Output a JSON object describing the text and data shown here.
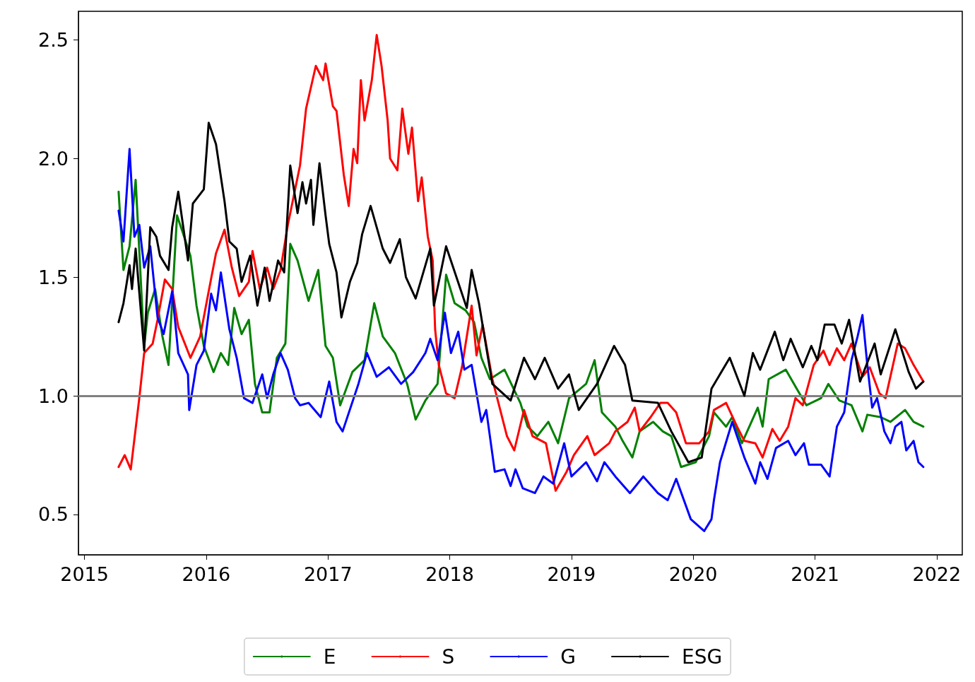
{
  "chart_data": {
    "type": "line",
    "xlim": [
      2014.95,
      2022.21
    ],
    "xticks": [
      2015,
      2016,
      2017,
      2018,
      2019,
      2020,
      2021,
      2022
    ],
    "ylim": [
      0.33,
      2.62
    ],
    "yticks": [
      0.5,
      {
        "value": 1,
        "label": "1.0"
      },
      1.5,
      {
        "value": 2,
        "label": "2.0"
      },
      2.5
    ],
    "grid": false,
    "legend": "bottom",
    "marker": "none",
    "line_style": "solid",
    "ref_lines": [
      {
        "axis": "y",
        "value": 1.0,
        "color": "#808080"
      }
    ],
    "series": [
      {
        "name": "E",
        "color": "#008000",
        "x": [
          2015.28,
          2015.32,
          2015.37,
          2015.42,
          2015.49,
          2015.52,
          2015.58,
          2015.64,
          2015.69,
          2015.76,
          2015.87,
          2015.92,
          2015.98,
          2016.06,
          2016.12,
          2016.18,
          2016.23,
          2016.29,
          2016.35,
          2016.4,
          2016.46,
          2016.52,
          2016.58,
          2016.65,
          2016.69,
          2016.75,
          2016.84,
          2016.92,
          2016.98,
          2017.04,
          2017.1,
          2017.2,
          2017.3,
          2017.38,
          2017.45,
          2017.55,
          2017.65,
          2017.72,
          2017.8,
          2017.9,
          2017.97,
          2018.04,
          2018.13,
          2018.2,
          2018.26,
          2018.33,
          2018.45,
          2018.58,
          2018.64,
          2018.72,
          2018.81,
          2018.89,
          2018.98,
          2019.12,
          2019.19,
          2019.25,
          2019.36,
          2019.42,
          2019.5,
          2019.56,
          2019.67,
          2019.75,
          2019.82,
          2019.9,
          2020.02,
          2020.13,
          2020.17,
          2020.27,
          2020.32,
          2020.4,
          2020.53,
          2020.57,
          2020.62,
          2020.76,
          2020.85,
          2020.93,
          2021.05,
          2021.11,
          2021.2,
          2021.3,
          2021.39,
          2021.43,
          2021.54,
          2021.62,
          2021.74,
          2021.81,
          2021.89
        ],
        "values": [
          1.86,
          1.53,
          1.63,
          1.91,
          1.21,
          1.35,
          1.45,
          1.25,
          1.13,
          1.76,
          1.59,
          1.38,
          1.21,
          1.1,
          1.18,
          1.13,
          1.37,
          1.26,
          1.32,
          1.05,
          0.93,
          0.93,
          1.16,
          1.22,
          1.64,
          1.57,
          1.4,
          1.53,
          1.21,
          1.16,
          0.96,
          1.1,
          1.15,
          1.39,
          1.25,
          1.18,
          1.05,
          0.9,
          0.98,
          1.05,
          1.51,
          1.39,
          1.36,
          1.31,
          1.16,
          1.07,
          1.11,
          0.97,
          0.87,
          0.83,
          0.89,
          0.8,
          0.99,
          1.05,
          1.15,
          0.93,
          0.87,
          0.81,
          0.74,
          0.85,
          0.89,
          0.85,
          0.83,
          0.7,
          0.72,
          0.83,
          0.93,
          0.87,
          0.91,
          0.8,
          0.95,
          0.87,
          1.07,
          1.11,
          1.03,
          0.96,
          0.99,
          1.05,
          0.98,
          0.96,
          0.85,
          0.92,
          0.91,
          0.89,
          0.94,
          0.89,
          0.87
        ]
      },
      {
        "name": "S",
        "color": "#ff0000",
        "x": [
          2015.28,
          2015.33,
          2015.38,
          2015.45,
          2015.49,
          2015.56,
          2015.6,
          2015.66,
          2015.72,
          2015.77,
          2015.87,
          2015.95,
          2016.02,
          2016.08,
          2016.15,
          2016.21,
          2016.27,
          2016.35,
          2016.38,
          2016.44,
          2016.5,
          2016.55,
          2016.61,
          2016.67,
          2016.77,
          2016.82,
          2016.9,
          2016.96,
          2016.98,
          2017.04,
          2017.07,
          2017.13,
          2017.17,
          2017.21,
          2017.24,
          2017.27,
          2017.3,
          2017.36,
          2017.4,
          2017.44,
          2017.49,
          2017.51,
          2017.57,
          2017.61,
          2017.66,
          2017.69,
          2017.74,
          2017.77,
          2017.82,
          2017.86,
          2017.88,
          2017.91,
          2017.97,
          2018.04,
          2018.1,
          2018.18,
          2018.22,
          2018.27,
          2018.35,
          2018.41,
          2018.47,
          2018.53,
          2018.61,
          2018.68,
          2018.79,
          2018.87,
          2018.96,
          2019.02,
          2019.13,
          2019.19,
          2019.31,
          2019.36,
          2019.46,
          2019.52,
          2019.56,
          2019.65,
          2019.73,
          2019.79,
          2019.86,
          2019.94,
          2020.05,
          2020.13,
          2020.17,
          2020.27,
          2020.36,
          2020.42,
          2020.51,
          2020.57,
          2020.65,
          2020.71,
          2020.78,
          2020.84,
          2020.9,
          2020.99,
          2021.07,
          2021.12,
          2021.18,
          2021.24,
          2021.3,
          2021.39,
          2021.45,
          2021.53,
          2021.58,
          2021.68,
          2021.74,
          2021.81,
          2021.89
        ],
        "values": [
          0.7,
          0.75,
          0.69,
          0.99,
          1.18,
          1.22,
          1.32,
          1.49,
          1.45,
          1.29,
          1.16,
          1.25,
          1.44,
          1.6,
          1.7,
          1.54,
          1.42,
          1.48,
          1.61,
          1.45,
          1.54,
          1.45,
          1.53,
          1.72,
          1.97,
          2.21,
          2.39,
          2.33,
          2.4,
          2.22,
          2.2,
          1.93,
          1.8,
          2.04,
          1.98,
          2.33,
          2.16,
          2.33,
          2.52,
          2.39,
          2.16,
          2.0,
          1.95,
          2.21,
          2.02,
          2.13,
          1.82,
          1.92,
          1.67,
          1.57,
          1.28,
          1.13,
          1.01,
          0.99,
          1.12,
          1.38,
          1.17,
          1.3,
          1.07,
          0.95,
          0.83,
          0.77,
          0.94,
          0.83,
          0.8,
          0.6,
          0.68,
          0.75,
          0.83,
          0.75,
          0.8,
          0.85,
          0.89,
          0.95,
          0.85,
          0.91,
          0.97,
          0.97,
          0.93,
          0.8,
          0.8,
          0.85,
          0.94,
          0.97,
          0.87,
          0.81,
          0.8,
          0.74,
          0.86,
          0.81,
          0.87,
          0.99,
          0.96,
          1.13,
          1.19,
          1.13,
          1.2,
          1.15,
          1.22,
          1.08,
          1.12,
          1.01,
          0.99,
          1.22,
          1.2,
          1.13,
          1.06
        ]
      },
      {
        "name": "G",
        "color": "#0000ff",
        "x": [
          2015.28,
          2015.32,
          2015.37,
          2015.41,
          2015.45,
          2015.49,
          2015.54,
          2015.6,
          2015.65,
          2015.72,
          2015.77,
          2015.85,
          2015.86,
          2015.92,
          2015.98,
          2016.04,
          2016.08,
          2016.12,
          2016.19,
          2016.25,
          2016.31,
          2016.38,
          2016.46,
          2016.5,
          2016.55,
          2016.61,
          2016.67,
          2016.73,
          2016.77,
          2016.84,
          2016.94,
          2017.01,
          2017.07,
          2017.12,
          2017.25,
          2017.32,
          2017.4,
          2017.5,
          2017.6,
          2017.7,
          2017.8,
          2017.84,
          2017.9,
          2017.96,
          2018.01,
          2018.07,
          2018.12,
          2018.18,
          2018.26,
          2018.3,
          2018.37,
          2018.45,
          2018.5,
          2018.54,
          2018.6,
          2018.7,
          2018.77,
          2018.85,
          2018.94,
          2019.0,
          2019.12,
          2019.21,
          2019.27,
          2019.36,
          2019.48,
          2019.59,
          2019.71,
          2019.79,
          2019.86,
          2019.98,
          2020.09,
          2020.15,
          2020.17,
          2020.22,
          2020.32,
          2020.42,
          2020.51,
          2020.55,
          2020.61,
          2020.68,
          2020.78,
          2020.84,
          2020.91,
          2020.95,
          2021.05,
          2021.12,
          2021.18,
          2021.24,
          2021.3,
          2021.35,
          2021.39,
          2021.43,
          2021.47,
          2021.51,
          2021.57,
          2021.62,
          2021.66,
          2021.71,
          2021.75,
          2021.81,
          2021.85,
          2021.89
        ],
        "values": [
          1.78,
          1.65,
          2.04,
          1.67,
          1.72,
          1.54,
          1.63,
          1.33,
          1.26,
          1.44,
          1.18,
          1.09,
          0.94,
          1.13,
          1.19,
          1.43,
          1.36,
          1.52,
          1.28,
          1.16,
          0.99,
          0.97,
          1.09,
          0.99,
          1.09,
          1.18,
          1.11,
          0.99,
          0.96,
          0.97,
          0.91,
          1.06,
          0.89,
          0.85,
          1.05,
          1.18,
          1.08,
          1.12,
          1.05,
          1.1,
          1.18,
          1.24,
          1.15,
          1.35,
          1.18,
          1.27,
          1.11,
          1.13,
          0.89,
          0.94,
          0.68,
          0.69,
          0.62,
          0.69,
          0.61,
          0.59,
          0.66,
          0.63,
          0.8,
          0.66,
          0.72,
          0.64,
          0.72,
          0.66,
          0.59,
          0.66,
          0.59,
          0.56,
          0.65,
          0.48,
          0.43,
          0.48,
          0.56,
          0.72,
          0.89,
          0.74,
          0.63,
          0.72,
          0.65,
          0.78,
          0.81,
          0.75,
          0.8,
          0.71,
          0.71,
          0.66,
          0.87,
          0.93,
          1.15,
          1.25,
          1.34,
          1.13,
          0.95,
          0.99,
          0.85,
          0.8,
          0.87,
          0.89,
          0.77,
          0.81,
          0.72,
          0.7
        ]
      },
      {
        "name": "ESG",
        "color": "#000000",
        "x": [
          2015.28,
          2015.32,
          2015.37,
          2015.39,
          2015.42,
          2015.49,
          2015.54,
          2015.59,
          2015.62,
          2015.69,
          2015.72,
          2015.77,
          2015.85,
          2015.89,
          2015.98,
          2016.02,
          2016.08,
          2016.15,
          2016.19,
          2016.25,
          2016.29,
          2016.36,
          2016.42,
          2016.48,
          2016.52,
          2016.59,
          2016.64,
          2016.69,
          2016.75,
          2016.79,
          2016.82,
          2016.86,
          2016.88,
          2016.93,
          2016.98,
          2017.01,
          2017.07,
          2017.11,
          2017.18,
          2017.24,
          2017.28,
          2017.35,
          2017.45,
          2017.51,
          2017.59,
          2017.64,
          2017.72,
          2017.84,
          2017.87,
          2017.97,
          2018.14,
          2018.18,
          2018.24,
          2018.35,
          2018.5,
          2018.61,
          2018.7,
          2018.78,
          2018.89,
          2018.98,
          2019.06,
          2019.21,
          2019.35,
          2019.44,
          2019.5,
          2019.71,
          2019.82,
          2019.96,
          2020.07,
          2020.15,
          2020.3,
          2020.42,
          2020.49,
          2020.55,
          2020.67,
          2020.74,
          2020.8,
          2020.9,
          2020.97,
          2021.02,
          2021.08,
          2021.16,
          2021.22,
          2021.28,
          2021.37,
          2021.49,
          2021.54,
          2021.66,
          2021.77,
          2021.83,
          2021.89
        ],
        "values": [
          1.31,
          1.39,
          1.55,
          1.45,
          1.62,
          1.19,
          1.71,
          1.67,
          1.59,
          1.53,
          1.71,
          1.86,
          1.57,
          1.81,
          1.87,
          2.15,
          2.06,
          1.82,
          1.65,
          1.62,
          1.48,
          1.59,
          1.38,
          1.54,
          1.4,
          1.57,
          1.52,
          1.97,
          1.77,
          1.9,
          1.81,
          1.91,
          1.72,
          1.98,
          1.76,
          1.64,
          1.52,
          1.33,
          1.48,
          1.56,
          1.68,
          1.8,
          1.62,
          1.56,
          1.66,
          1.5,
          1.41,
          1.62,
          1.38,
          1.63,
          1.37,
          1.53,
          1.39,
          1.05,
          0.98,
          1.16,
          1.07,
          1.16,
          1.03,
          1.09,
          0.94,
          1.05,
          1.21,
          1.13,
          0.98,
          0.97,
          0.85,
          0.72,
          0.74,
          1.03,
          1.16,
          1.0,
          1.18,
          1.11,
          1.27,
          1.15,
          1.24,
          1.12,
          1.21,
          1.15,
          1.3,
          1.3,
          1.22,
          1.32,
          1.06,
          1.22,
          1.09,
          1.28,
          1.1,
          1.03,
          1.06
        ]
      }
    ]
  }
}
